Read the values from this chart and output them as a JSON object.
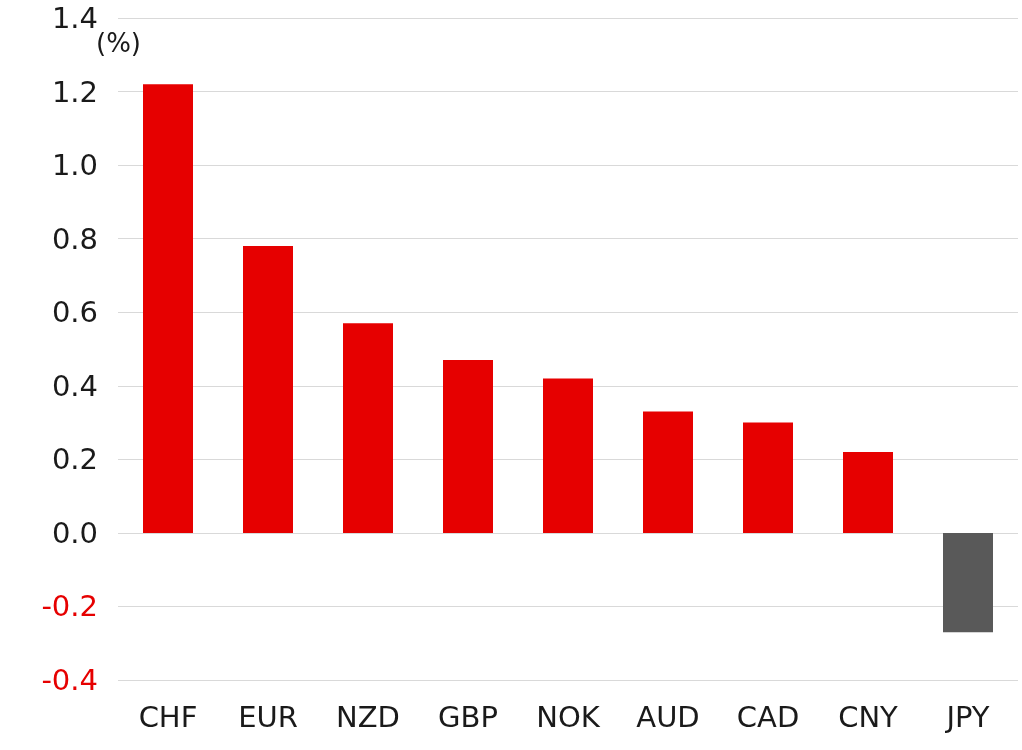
{
  "chart_data": {
    "type": "bar",
    "ylabel": "(%)",
    "categories": [
      "CHF",
      "EUR",
      "NZD",
      "GBP",
      "NOK",
      "AUD",
      "CAD",
      "CNY",
      "JPY"
    ],
    "values": [
      1.22,
      0.78,
      0.57,
      0.47,
      0.42,
      0.33,
      0.3,
      0.22,
      -0.27
    ],
    "colors": [
      "#e60000",
      "#e60000",
      "#e60000",
      "#e60000",
      "#e60000",
      "#e60000",
      "#e60000",
      "#e60000",
      "#595959"
    ],
    "ylim": [
      -0.4,
      1.4
    ],
    "yticks": [
      {
        "value": -0.4,
        "label": "-0.4"
      },
      {
        "value": -0.2,
        "label": "-0.2"
      },
      {
        "value": 0,
        "label": "0.0"
      },
      {
        "value": 0.2,
        "label": "0.2"
      },
      {
        "value": 0.4,
        "label": "0.4"
      },
      {
        "value": 0.6,
        "label": "0.6"
      },
      {
        "value": 0.8,
        "label": "0.8"
      },
      {
        "value": 1.0,
        "label": "1.0"
      },
      {
        "value": 1.2,
        "label": "1.2"
      },
      {
        "value": 1.4,
        "label": "1.4"
      }
    ],
    "grid": "y"
  }
}
